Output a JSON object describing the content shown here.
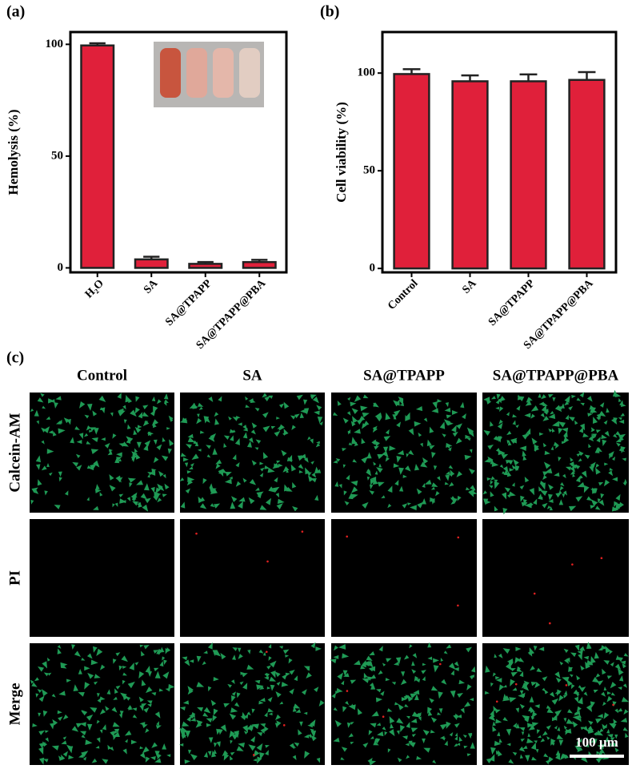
{
  "chart_data": [
    {
      "type": "bar",
      "panel_label": "(a)",
      "y_label": "Hemolysis (%)",
      "categories": [
        "H₂O",
        "SA",
        "SA@TPAPP",
        "SA@TPAPP@PBA"
      ],
      "values": [
        99.5,
        3.8,
        1.8,
        2.6
      ],
      "errors": [
        1.0,
        1.2,
        0.8,
        1.0
      ],
      "color": "#e0203a",
      "ylim": [
        -2,
        105.5
      ],
      "yticks": [
        0,
        50,
        100
      ]
    },
    {
      "type": "bar",
      "panel_label": "(b)",
      "y_label": "Cell viability (%)",
      "categories": [
        "Control",
        "SA",
        "SA@TPAPP",
        "SA@TPAPP@PBA"
      ],
      "values": [
        99.5,
        95.8,
        95.8,
        96.5
      ],
      "errors": [
        2.5,
        3.0,
        3.5,
        4.0
      ],
      "color": "#e0203a",
      "ylim": [
        -2,
        121
      ],
      "yticks": [
        0,
        50,
        100
      ]
    }
  ],
  "panel_c": {
    "panel_label": "(c)",
    "columns": [
      "Control",
      "SA",
      "SA@TPAPP",
      "SA@TPAPP@PBA"
    ],
    "rows": [
      "Calcein-AM",
      "PI",
      "Merge"
    ],
    "scale_bar": "100 µm"
  }
}
